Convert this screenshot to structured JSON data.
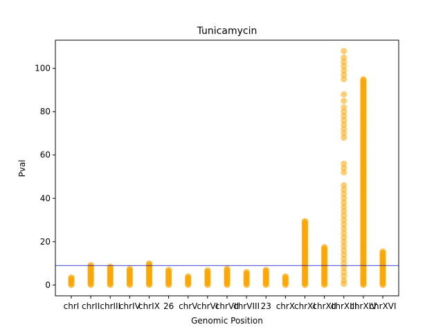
{
  "chart_data": {
    "type": "scatter",
    "title": "Tunicamycin",
    "xlabel": "Genomic Position",
    "ylabel": "Pval",
    "ylim": [
      -5,
      113
    ],
    "yticks": [
      0,
      20,
      40,
      60,
      80,
      100
    ],
    "categories": [
      "chrI",
      "chrII",
      "chrIII",
      "chrIV",
      "chrIX",
      "26",
      "chrV",
      "chrVI",
      "chrVII",
      "chrVIII",
      "23",
      "chrX",
      "chrXI",
      "chrXII",
      "chrXIII",
      "chrXIV",
      "chrXVI"
    ],
    "point_ranges": [
      {
        "category": "chrI",
        "min": 0,
        "max": 3.5
      },
      {
        "category": "chrII",
        "min": 0,
        "max": 9.2
      },
      {
        "category": "chrIII",
        "min": 0,
        "max": 8.5
      },
      {
        "category": "chrIV",
        "min": 0,
        "max": 7.5
      },
      {
        "category": "chrIX",
        "min": 0,
        "max": 10.0
      },
      {
        "category": "26",
        "min": 0,
        "max": 7.0
      },
      {
        "category": "chrV",
        "min": 0,
        "max": 4.0
      },
      {
        "category": "chrVI",
        "min": 0,
        "max": 6.8
      },
      {
        "category": "chrVII",
        "min": 0,
        "max": 7.5
      },
      {
        "category": "chrVIII",
        "min": 0,
        "max": 6.0
      },
      {
        "category": "23",
        "min": 0,
        "max": 7.0
      },
      {
        "category": "chrX",
        "min": 0,
        "max": 4.0
      },
      {
        "category": "chrXI",
        "min": 0,
        "max": 29.5
      },
      {
        "category": "chrXII",
        "min": 0,
        "max": 17.5
      },
      {
        "category": "chrXIII",
        "min": 0,
        "max": 108
      },
      {
        "category": "chrXIV",
        "min": 0,
        "max": 95
      },
      {
        "category": "chrXVI",
        "min": 0,
        "max": 15.5
      }
    ],
    "outliers": [
      {
        "category": "chrXIII",
        "values": [
          108,
          105,
          103,
          101,
          99,
          97,
          95,
          88,
          85,
          82,
          80,
          78,
          76,
          74,
          72,
          70,
          68,
          56,
          54,
          52,
          46,
          44,
          42,
          40,
          38,
          36,
          34,
          32,
          30,
          28,
          26,
          24,
          22,
          20,
          18,
          16,
          14,
          12,
          10,
          8,
          6,
          4,
          2,
          0.5
        ]
      }
    ],
    "threshold": 9,
    "marker_color": "#FFA500",
    "threshold_color": "#0000CC",
    "grid": false,
    "legend": "none"
  }
}
